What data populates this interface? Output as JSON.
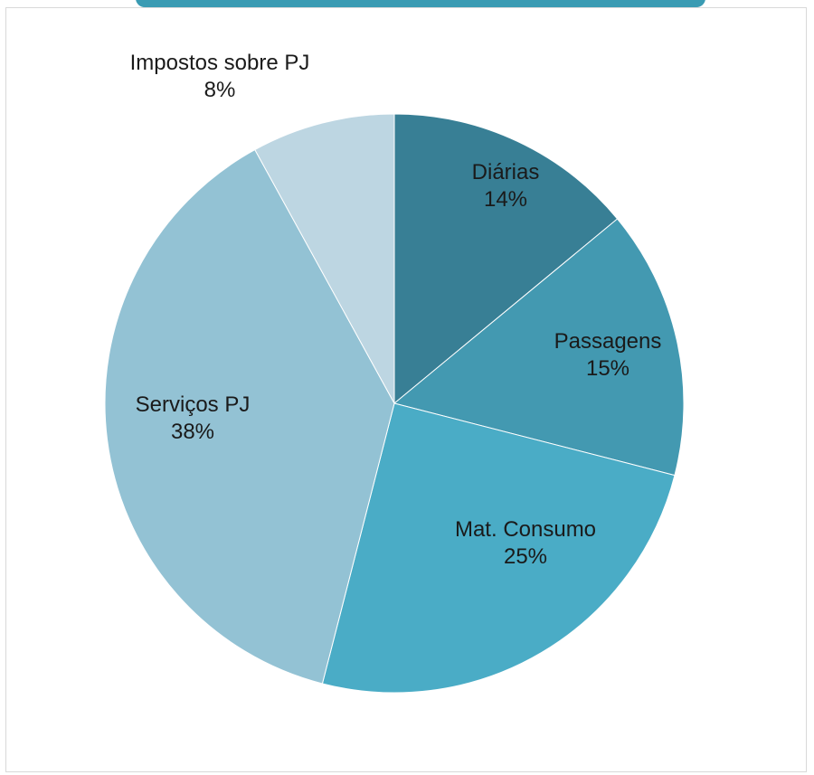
{
  "chart_data": {
    "type": "pie",
    "title": "",
    "start_angle_deg": 0,
    "direction": "clockwise",
    "slices": [
      {
        "label": "Diárias",
        "value": 14,
        "display": "14%",
        "color": "#387f95"
      },
      {
        "label": "Passagens",
        "value": 15,
        "display": "15%",
        "color": "#4399b1"
      },
      {
        "label": "Mat. Consumo",
        "value": 25,
        "display": "25%",
        "color": "#4aacc6"
      },
      {
        "label": "Serviços PJ",
        "value": 38,
        "display": "38%",
        "color": "#93c2d4"
      },
      {
        "label": "Impostos sobre PJ",
        "value": 8,
        "display": "8%",
        "color": "#bdd6e2"
      }
    ]
  }
}
